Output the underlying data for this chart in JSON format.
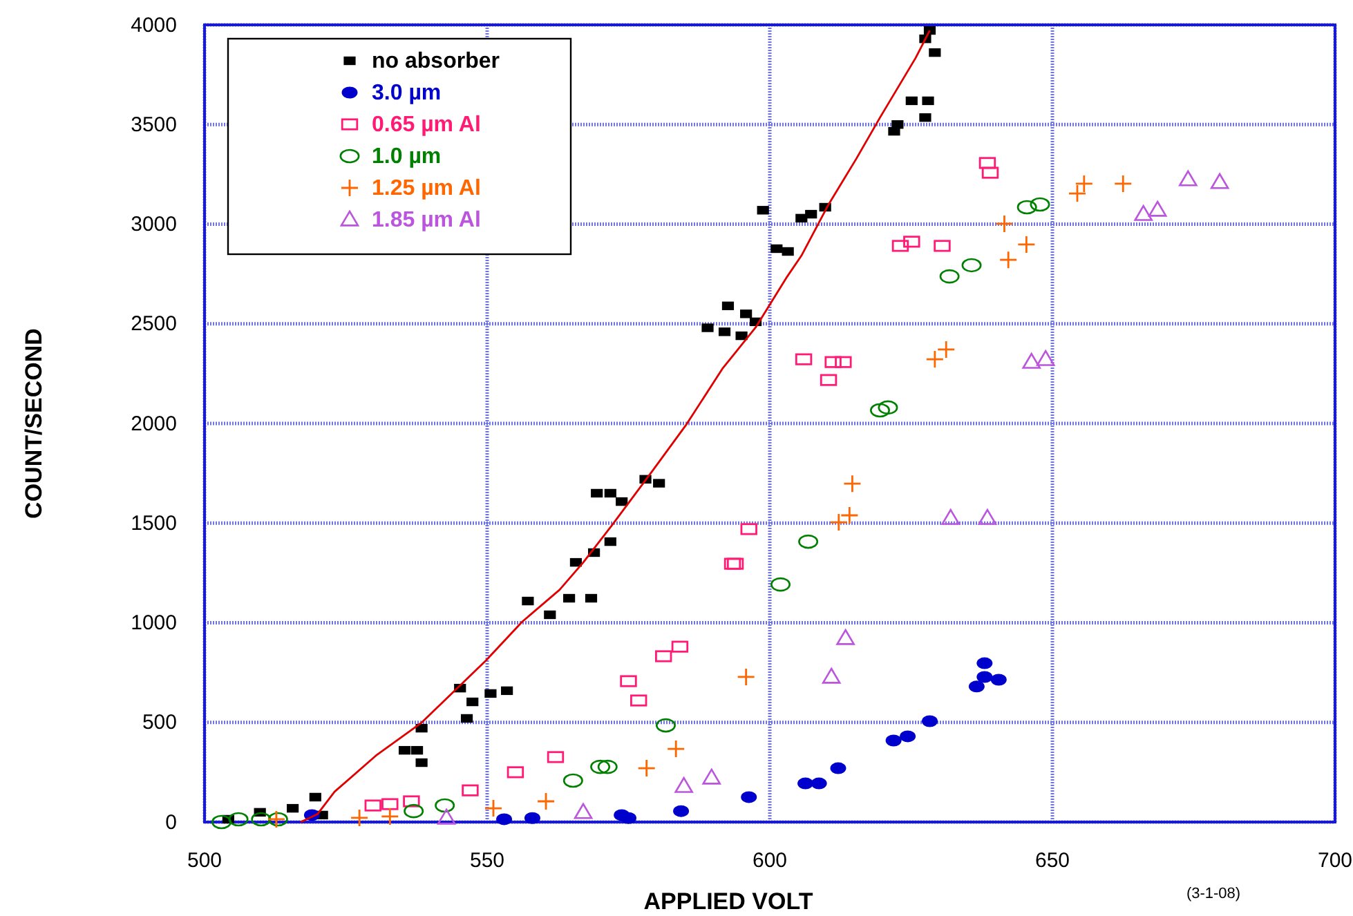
{
  "chart_data": {
    "type": "scatter",
    "xlabel": "APPLIED VOLT",
    "ylabel": "COUNT/SECOND",
    "annotations": [
      "(3-1-08)"
    ],
    "xlim": [
      500,
      700
    ],
    "ylim": [
      0,
      4000
    ],
    "xticks": [
      500,
      550,
      600,
      650,
      700
    ],
    "yticks": [
      0,
      500,
      1000,
      1500,
      2000,
      2500,
      3000,
      3500,
      4000
    ],
    "grid": true,
    "legend": "top left",
    "series": [
      {
        "name": "no absorber",
        "color": "#000000",
        "marker": "square",
        "x": [
          504.2,
          509.8,
          515.6,
          519.6,
          520.8,
          535.4,
          537.6,
          538.4,
          538.4,
          545.2,
          546.4,
          547.4,
          550.6,
          553.5,
          557.2,
          561.1,
          564.5,
          568.4,
          565.7,
          568.9,
          571.8,
          569.4,
          571.8,
          573.8,
          578,
          580.4,
          589,
          592,
          595,
          592.6,
          595.8,
          597.5,
          598.8,
          601.2,
          603.2,
          605.6,
          607.3,
          609.8,
          622,
          622.6,
          625.1,
          627.5,
          628,
          627.5,
          628.3,
          629.2
        ],
        "values": [
          14,
          49,
          69,
          125,
          35,
          360,
          360,
          298,
          471,
          672,
          520,
          603,
          645,
          659,
          1109,
          1040,
          1123,
          1123,
          1303,
          1352,
          1407,
          1650,
          1650,
          1608,
          1720,
          1700,
          2480,
          2460,
          2440,
          2590,
          2550,
          2510,
          3070,
          2877,
          2863,
          3030,
          3050,
          3085,
          3466,
          3500,
          3619,
          3535,
          3619,
          3930,
          3972,
          3861
        ]
      },
      {
        "name": "3.0 µm",
        "color": "#0000cc",
        "marker": "circle",
        "x": [
          519,
          553,
          558,
          573.8,
          575,
          584.3,
          596.3,
          606.3,
          608.7,
          612.1,
          621.9,
          624.4,
          628.3,
          636.6,
          638,
          640.5,
          638
        ],
        "values": [
          35,
          14,
          20,
          35,
          20,
          55,
          125,
          194,
          194,
          270,
          409,
          430,
          506,
          680,
          728,
          714,
          797
        ]
      },
      {
        "name": "0.65 µm Al",
        "color": "#ff1a75",
        "marker": "square",
        "x": [
          529.8,
          532.8,
          536.6,
          547,
          555,
          562.1,
          575,
          576.8,
          581.2,
          584.1,
          593.4,
          593.9,
          596.3,
          606,
          610.4,
          611.2,
          613,
          623.1,
          625.1,
          630.5,
          638.5,
          639
        ],
        "values": [
          83,
          90,
          104,
          159,
          250,
          326,
          707,
          610,
          832,
          880,
          1296,
          1296,
          1470,
          2322,
          2218,
          2308,
          2308,
          2891,
          2912,
          2891,
          3307,
          3258
        ]
      },
      {
        "name": "1.0 µm",
        "color": "#008000",
        "marker": "circle",
        "x": [
          503,
          506,
          510,
          513,
          537,
          542.5,
          565.2,
          570,
          571.3,
          581.6,
          601.9,
          606.8,
          619.5,
          620.9,
          631.8,
          635.7,
          645.5,
          647.8
        ],
        "values": [
          0,
          14,
          14,
          14,
          55,
          83,
          208,
          277,
          277,
          485,
          1192,
          1407,
          2066,
          2080,
          2738,
          2794,
          3085,
          3099
        ]
      },
      {
        "name": "1.25 µm Al",
        "color": "#ff6600",
        "marker": "cross",
        "x": [
          512.7,
          527.4,
          532.8,
          551.1,
          560.4,
          578.2,
          583.4,
          595.8,
          612.2,
          614.1,
          614.6,
          629.2,
          631.2,
          641.5,
          642.2,
          645.4,
          654.4,
          655.6,
          662.5
        ],
        "values": [
          14,
          21,
          28,
          69,
          104,
          270,
          367,
          728,
          1504,
          1539,
          1698,
          2322,
          2371,
          3002,
          2821,
          2898,
          3154,
          3203,
          3203
        ]
      },
      {
        "name": "1.85 µm Al",
        "color": "#bb55dd",
        "marker": "triangle",
        "x": [
          542.8,
          567,
          584.8,
          589.7,
          610.9,
          613.4,
          632,
          638.5,
          646.3,
          648.8,
          666.1,
          668.6,
          674,
          679.6
        ],
        "values": [
          21,
          49,
          180,
          222,
          728,
          922,
          1525,
          1525,
          2308,
          2322,
          3050,
          3071,
          3224,
          3210
        ]
      },
      {
        "type": "line",
        "color": "#e00000",
        "x": [
          517,
          520,
          523,
          530.3,
          538.4,
          549.8,
          556.2,
          562.8,
          567,
          572.1,
          579.4,
          585.3,
          591.6,
          597.5,
          603.1,
          605.6,
          610.4,
          615.3,
          619.5,
          625.8,
          628.3
        ],
        "values": [
          0,
          40,
          152,
          333,
          499,
          811,
          1005,
          1165,
          1303,
          1490,
          1768,
          1997,
          2274,
          2482,
          2738,
          2842,
          3099,
          3328,
          3535,
          3834,
          3972
        ]
      }
    ]
  }
}
